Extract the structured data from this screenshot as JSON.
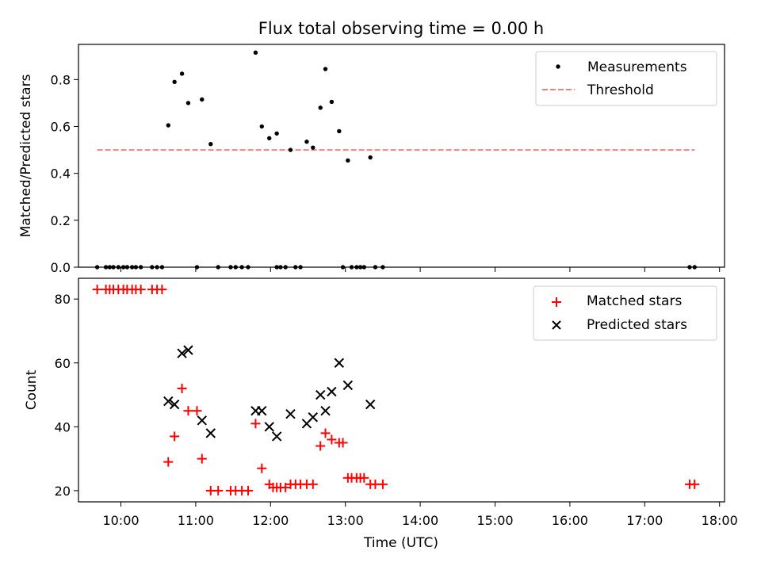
{
  "chart_data": [
    {
      "type": "scatter",
      "title": "Flux total observing time = 0.00 h",
      "xlabel": "",
      "ylabel": "Matched/Predicted stars",
      "xlim": [
        "09:26",
        "18:04"
      ],
      "ylim": [
        0,
        0.95
      ],
      "yticks": [
        "0.0",
        "0.2",
        "0.4",
        "0.6",
        "0.8"
      ],
      "grid": false,
      "legend_position": "top-right",
      "series": [
        {
          "name": "Measurements",
          "kind": "points",
          "color": "#000000",
          "points": [
            [
              "09:41",
              0
            ],
            [
              "09:48",
              0
            ],
            [
              "09:51",
              0
            ],
            [
              "09:54",
              0
            ],
            [
              "09:58",
              0
            ],
            [
              "10:02",
              0
            ],
            [
              "10:05",
              0
            ],
            [
              "10:09",
              0
            ],
            [
              "10:12",
              0
            ],
            [
              "10:16",
              0
            ],
            [
              "10:25",
              0
            ],
            [
              "10:29",
              0
            ],
            [
              "10:33",
              0
            ],
            [
              "10:38",
              0.605
            ],
            [
              "10:43",
              0.79
            ],
            [
              "10:49",
              0.825
            ],
            [
              "10:54",
              0.7
            ],
            [
              "11:01",
              0
            ],
            [
              "11:05",
              0.715
            ],
            [
              "11:12",
              0.525
            ],
            [
              "11:18",
              0
            ],
            [
              "11:28",
              0
            ],
            [
              "11:32",
              0
            ],
            [
              "11:37",
              0
            ],
            [
              "11:42",
              0
            ],
            [
              "11:48",
              0.915
            ],
            [
              "11:53",
              0.6
            ],
            [
              "11:59",
              0.55
            ],
            [
              "12:05",
              0.57
            ],
            [
              "12:05",
              0
            ],
            [
              "12:08",
              0
            ],
            [
              "12:12",
              0
            ],
            [
              "12:16",
              0.5
            ],
            [
              "12:20",
              0
            ],
            [
              "12:24",
              0
            ],
            [
              "12:29",
              0.535
            ],
            [
              "12:34",
              0.51
            ],
            [
              "12:40",
              0.68
            ],
            [
              "12:44",
              0.845
            ],
            [
              "12:49",
              0.705
            ],
            [
              "12:55",
              0.58
            ],
            [
              "12:58",
              0
            ],
            [
              "13:02",
              0.455
            ],
            [
              "13:05",
              0
            ],
            [
              "13:09",
              0
            ],
            [
              "13:12",
              0
            ],
            [
              "13:15",
              0
            ],
            [
              "13:20",
              0.468
            ],
            [
              "13:24",
              0
            ],
            [
              "13:30",
              0
            ],
            [
              "17:36",
              0
            ],
            [
              "17:40",
              0
            ]
          ]
        },
        {
          "name": "Threshold",
          "kind": "dashed-line",
          "color": "#f08080",
          "points": [
            [
              "09:41",
              0.5
            ],
            [
              "17:40",
              0.5
            ]
          ]
        }
      ]
    },
    {
      "type": "scatter",
      "title": "",
      "xlabel": "Time (UTC)",
      "ylabel": "Count",
      "xlim": [
        "09:26",
        "18:04"
      ],
      "ylim": [
        16.5,
        86.5
      ],
      "yticks": [
        "20",
        "40",
        "60",
        "80"
      ],
      "xticks": [
        "10:00",
        "11:00",
        "12:00",
        "13:00",
        "14:00",
        "15:00",
        "16:00",
        "17:00",
        "18:00"
      ],
      "grid": false,
      "legend_position": "top-right",
      "series": [
        {
          "name": "Matched stars",
          "marker": "plus",
          "color": "#ff0000",
          "points": [
            [
              "09:41",
              83
            ],
            [
              "09:48",
              83
            ],
            [
              "09:51",
              83
            ],
            [
              "09:54",
              83
            ],
            [
              "09:58",
              83
            ],
            [
              "10:02",
              83
            ],
            [
              "10:05",
              83
            ],
            [
              "10:09",
              83
            ],
            [
              "10:12",
              83
            ],
            [
              "10:16",
              83
            ],
            [
              "10:25",
              83
            ],
            [
              "10:29",
              83
            ],
            [
              "10:33",
              83
            ],
            [
              "10:38",
              29
            ],
            [
              "10:43",
              37
            ],
            [
              "10:49",
              52
            ],
            [
              "10:54",
              45
            ],
            [
              "11:01",
              45
            ],
            [
              "11:05",
              30
            ],
            [
              "11:12",
              20
            ],
            [
              "11:18",
              20
            ],
            [
              "11:28",
              20
            ],
            [
              "11:32",
              20
            ],
            [
              "11:37",
              20
            ],
            [
              "11:42",
              20
            ],
            [
              "11:48",
              41
            ],
            [
              "11:53",
              27
            ],
            [
              "11:59",
              22
            ],
            [
              "12:02",
              21
            ],
            [
              "12:05",
              21
            ],
            [
              "12:08",
              21
            ],
            [
              "12:12",
              21
            ],
            [
              "12:16",
              22
            ],
            [
              "12:20",
              22
            ],
            [
              "12:24",
              22
            ],
            [
              "12:29",
              22
            ],
            [
              "12:34",
              22
            ],
            [
              "12:40",
              34
            ],
            [
              "12:44",
              38
            ],
            [
              "12:49",
              36
            ],
            [
              "12:55",
              35
            ],
            [
              "12:58",
              35
            ],
            [
              "13:02",
              24
            ],
            [
              "13:05",
              24
            ],
            [
              "13:09",
              24
            ],
            [
              "13:12",
              24
            ],
            [
              "13:15",
              24
            ],
            [
              "13:20",
              22
            ],
            [
              "13:24",
              22
            ],
            [
              "13:30",
              22
            ],
            [
              "17:36",
              22
            ],
            [
              "17:40",
              22
            ]
          ]
        },
        {
          "name": "Predicted stars",
          "marker": "cross",
          "color": "#000000",
          "points": [
            [
              "10:38",
              48
            ],
            [
              "10:43",
              47
            ],
            [
              "10:49",
              63
            ],
            [
              "10:54",
              64
            ],
            [
              "11:05",
              42
            ],
            [
              "11:12",
              38
            ],
            [
              "11:48",
              45
            ],
            [
              "11:53",
              45
            ],
            [
              "11:59",
              40
            ],
            [
              "12:05",
              37
            ],
            [
              "12:16",
              44
            ],
            [
              "12:29",
              41
            ],
            [
              "12:34",
              43
            ],
            [
              "12:40",
              50
            ],
            [
              "12:44",
              45
            ],
            [
              "12:49",
              51
            ],
            [
              "12:55",
              60
            ],
            [
              "13:02",
              53
            ],
            [
              "13:20",
              47
            ]
          ]
        }
      ]
    }
  ]
}
